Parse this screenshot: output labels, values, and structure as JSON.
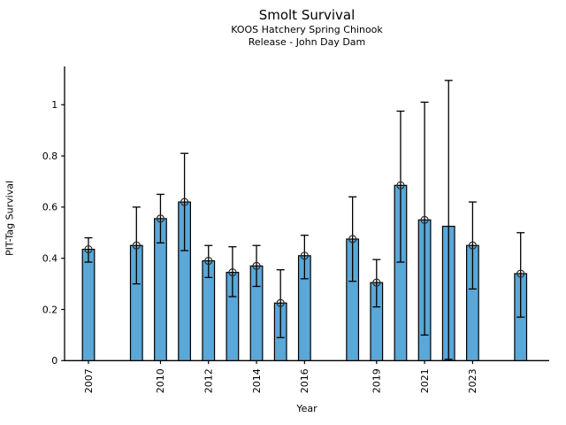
{
  "chart_data": {
    "type": "bar",
    "title": "Smolt Survival",
    "subtitle": [
      "KOOS Hatchery Spring Chinook",
      "Release - John Day Dam"
    ],
    "xlabel": "Year",
    "ylabel": "PIT-Tag Survival",
    "xlim": [
      2006.0,
      2026.2
    ],
    "ylim": [
      0,
      1.15
    ],
    "yticks": [
      0,
      0.2,
      0.4,
      0.6,
      0.8,
      1
    ],
    "ytick_labels": [
      "0",
      "0.2",
      "0.4",
      "0.6",
      "0.8",
      "1"
    ],
    "xticks": [
      2007,
      2010,
      2012,
      2014,
      2016,
      2019,
      2021,
      2023
    ],
    "grid": false,
    "legend": "none",
    "bar_width_years": 0.5,
    "bar_color": "#5BA7D7",
    "bar_edge_color": "#000000",
    "error_color": "#000000",
    "marker_style": "open-circle",
    "points": [
      {
        "year": 2007,
        "value": 0.435,
        "ci_low": 0.385,
        "ci_high": 0.48,
        "marker": true
      },
      {
        "year": 2009,
        "value": 0.45,
        "ci_low": 0.3,
        "ci_high": 0.6,
        "marker": true
      },
      {
        "year": 2010,
        "value": 0.555,
        "ci_low": 0.46,
        "ci_high": 0.65,
        "marker": true
      },
      {
        "year": 2011,
        "value": 0.62,
        "ci_low": 0.43,
        "ci_high": 0.81,
        "marker": true
      },
      {
        "year": 2012,
        "value": 0.39,
        "ci_low": 0.325,
        "ci_high": 0.45,
        "marker": true
      },
      {
        "year": 2013,
        "value": 0.345,
        "ci_low": 0.25,
        "ci_high": 0.445,
        "marker": true
      },
      {
        "year": 2014,
        "value": 0.37,
        "ci_low": 0.29,
        "ci_high": 0.45,
        "marker": true
      },
      {
        "year": 2015,
        "value": 0.225,
        "ci_low": 0.09,
        "ci_high": 0.355,
        "marker": true
      },
      {
        "year": 2016,
        "value": 0.41,
        "ci_low": 0.32,
        "ci_high": 0.49,
        "marker": true
      },
      {
        "year": 2018,
        "value": 0.475,
        "ci_low": 0.31,
        "ci_high": 0.64,
        "marker": true
      },
      {
        "year": 2019,
        "value": 0.305,
        "ci_low": 0.21,
        "ci_high": 0.395,
        "marker": true
      },
      {
        "year": 2020,
        "value": 0.685,
        "ci_low": 0.385,
        "ci_high": 0.975,
        "marker": true
      },
      {
        "year": 2021,
        "value": 0.55,
        "ci_low": 0.1,
        "ci_high": 1.01,
        "marker": true
      },
      {
        "year": 2022,
        "value": 0.525,
        "ci_low": 0.005,
        "ci_high": 1.095,
        "marker": false
      },
      {
        "year": 2023,
        "value": 0.45,
        "ci_low": 0.28,
        "ci_high": 0.62,
        "marker": true
      },
      {
        "year": 2025,
        "value": 0.34,
        "ci_low": 0.17,
        "ci_high": 0.5,
        "marker": true
      }
    ]
  }
}
